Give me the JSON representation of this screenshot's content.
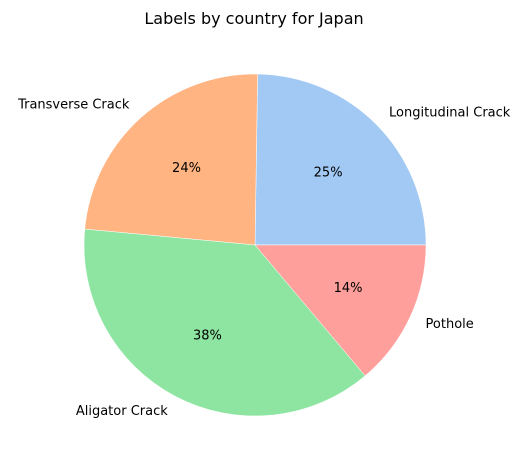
{
  "chart_data": {
    "type": "pie",
    "title": "Labels by country for Japan",
    "slices": [
      {
        "label": "Longitudinal Crack",
        "value": 25,
        "pct_label": "25%",
        "color": "#a1c9f4"
      },
      {
        "label": "Transverse Crack",
        "value": 24,
        "pct_label": "24%",
        "color": "#ffb482"
      },
      {
        "label": "Aligator Crack",
        "value": 38,
        "pct_label": "38%",
        "color": "#8de5a1"
      },
      {
        "label": "Pothole",
        "value": 14,
        "pct_label": "14%",
        "color": "#ff9f9b"
      }
    ]
  }
}
